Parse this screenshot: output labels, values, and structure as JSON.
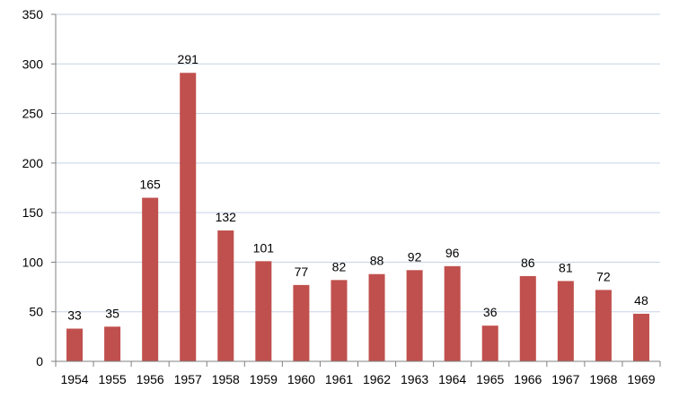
{
  "chart_data": {
    "type": "bar",
    "title": "",
    "xlabel": "",
    "ylabel": "",
    "categories": [
      "1954",
      "1955",
      "1956",
      "1957",
      "1958",
      "1959",
      "1960",
      "1961",
      "1962",
      "1963",
      "1964",
      "1965",
      "1966",
      "1967",
      "1968",
      "1969"
    ],
    "values": [
      33,
      35,
      165,
      291,
      132,
      101,
      77,
      82,
      88,
      92,
      96,
      36,
      86,
      81,
      72,
      48
    ],
    "ylim": [
      0,
      350
    ],
    "yticks": [
      0,
      50,
      100,
      150,
      200,
      250,
      300,
      350
    ],
    "grid": true,
    "legend": "none",
    "data_labels": true,
    "colors": {
      "bar": "#c0504d",
      "grid": "#c5d3e6",
      "axis": "#808080"
    }
  }
}
